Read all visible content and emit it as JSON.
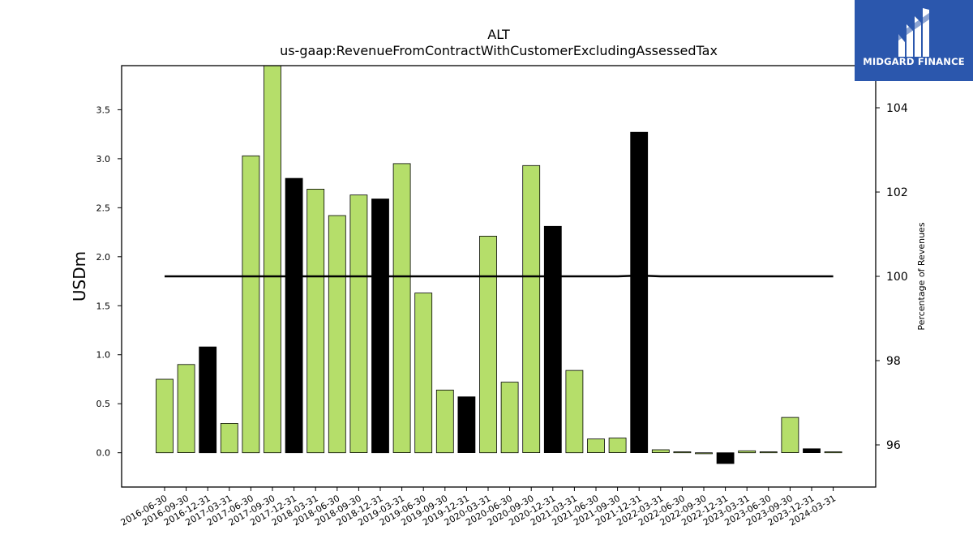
{
  "logo": {
    "text": "MIDGARD FINANCE",
    "background": "#2b57ad"
  },
  "chart_data": {
    "type": "bar",
    "title": "ALT",
    "subtitle": "us-gaap:RevenueFromContractWithCustomerExcludingAssessedTax",
    "ylabel": "USDm",
    "y2label": "Percentage of Revenues",
    "ylim": [
      -0.35,
      3.95
    ],
    "y2lim": [
      95.0,
      105.0
    ],
    "yticks": [
      "0.0",
      "0.5",
      "1.0",
      "1.5",
      "2.0",
      "2.5",
      "3.0",
      "3.5"
    ],
    "y2ticks": [
      "96",
      "98",
      "100",
      "102",
      "104"
    ],
    "categories": [
      "2016-06-30",
      "2016-09-30",
      "2016-12-31",
      "2017-03-31",
      "2017-06-30",
      "2017-09-30",
      "2017-12-31",
      "2018-03-31",
      "2018-06-30",
      "2018-09-30",
      "2018-12-31",
      "2019-03-31",
      "2019-06-30",
      "2019-09-30",
      "2019-12-31",
      "2020-03-31",
      "2020-06-30",
      "2020-09-30",
      "2020-12-31",
      "2021-03-31",
      "2021-06-30",
      "2021-09-30",
      "2021-12-31",
      "2022-03-31",
      "2022-06-30",
      "2022-09-30",
      "2022-12-31",
      "2023-03-31",
      "2023-06-30",
      "2023-09-30",
      "2023-12-31",
      "2024-03-31"
    ],
    "values": [
      0.75,
      0.9,
      1.08,
      0.3,
      3.03,
      3.95,
      2.8,
      2.69,
      2.42,
      2.63,
      2.59,
      2.95,
      1.63,
      0.64,
      0.57,
      2.21,
      0.72,
      2.93,
      2.31,
      0.84,
      0.14,
      0.15,
      3.27,
      0.03,
      0.01,
      -0.01,
      -0.11,
      0.02,
      0.01,
      0.36,
      0.04,
      0.01
    ],
    "bar_types": [
      "q",
      "q",
      "a",
      "q",
      "q",
      "q",
      "a",
      "q",
      "q",
      "q",
      "a",
      "q",
      "q",
      "q",
      "a",
      "q",
      "q",
      "q",
      "a",
      "q",
      "q",
      "q",
      "a",
      "q",
      "q",
      "q",
      "a",
      "q",
      "q",
      "q",
      "a",
      "q"
    ],
    "colors": {
      "quarter": "#b5de6a",
      "annual": "#000000",
      "line": "#000000"
    },
    "line_values": [
      100,
      100,
      100,
      100,
      100,
      100,
      100,
      100,
      100,
      100,
      100,
      100,
      100,
      100,
      100,
      100,
      100,
      100,
      100,
      100,
      100,
      100,
      100.02,
      100,
      100,
      100,
      100,
      100,
      100,
      100,
      100,
      100
    ]
  }
}
